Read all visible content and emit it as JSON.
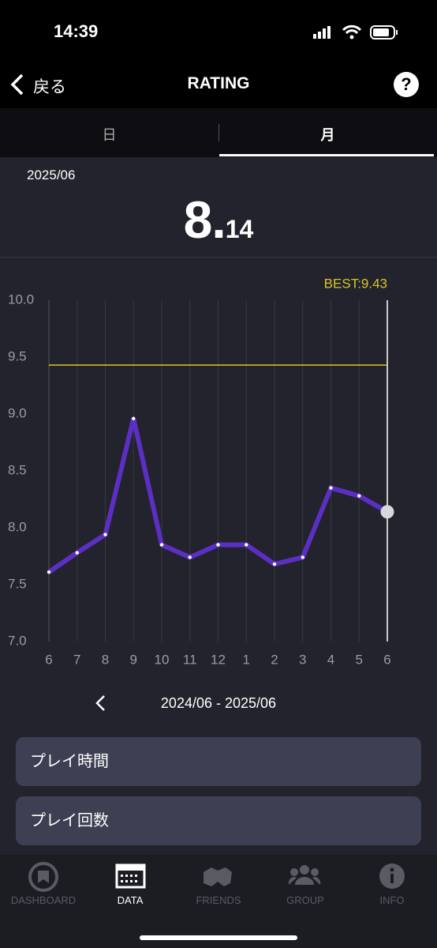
{
  "status_bar": {
    "time": "14:39"
  },
  "nav": {
    "back": "戻る",
    "title": "RATING",
    "help": "?"
  },
  "tabs": [
    "日",
    "月"
  ],
  "period": "2025/06",
  "rating": {
    "integer": "8.",
    "decimal": "14"
  },
  "chart_data": {
    "type": "line",
    "categories": [
      "6",
      "7",
      "8",
      "9",
      "10",
      "11",
      "12",
      "1",
      "2",
      "3",
      "4",
      "5",
      "6"
    ],
    "values": [
      7.61,
      7.78,
      7.94,
      8.96,
      7.85,
      7.74,
      7.85,
      7.85,
      7.68,
      7.74,
      8.35,
      8.28,
      8.14
    ],
    "color": "#5b2fc4",
    "ylim": [
      7,
      10
    ],
    "yticks": [
      {
        "value": 7,
        "label": "7.0"
      },
      {
        "value": 7.5,
        "label": "7.5"
      },
      {
        "value": 8,
        "label": "8.0"
      },
      {
        "value": 8.5,
        "label": "8.5"
      },
      {
        "value": 9,
        "label": "9.0"
      },
      {
        "value": 9.5,
        "label": "9.5"
      },
      {
        "value": 10,
        "label": "10.0"
      }
    ],
    "grid": true,
    "best": 9.43,
    "best_label": "BEST:9.43",
    "best_color": "#d9c62b"
  },
  "range": "2024/06 - 2025/06",
  "buttons": [
    "プレイ時間",
    "プレイ回数"
  ],
  "tab_bar": [
    "DASHBOARD",
    "DATA",
    "FRIENDS",
    "GROUP",
    "INFO"
  ]
}
